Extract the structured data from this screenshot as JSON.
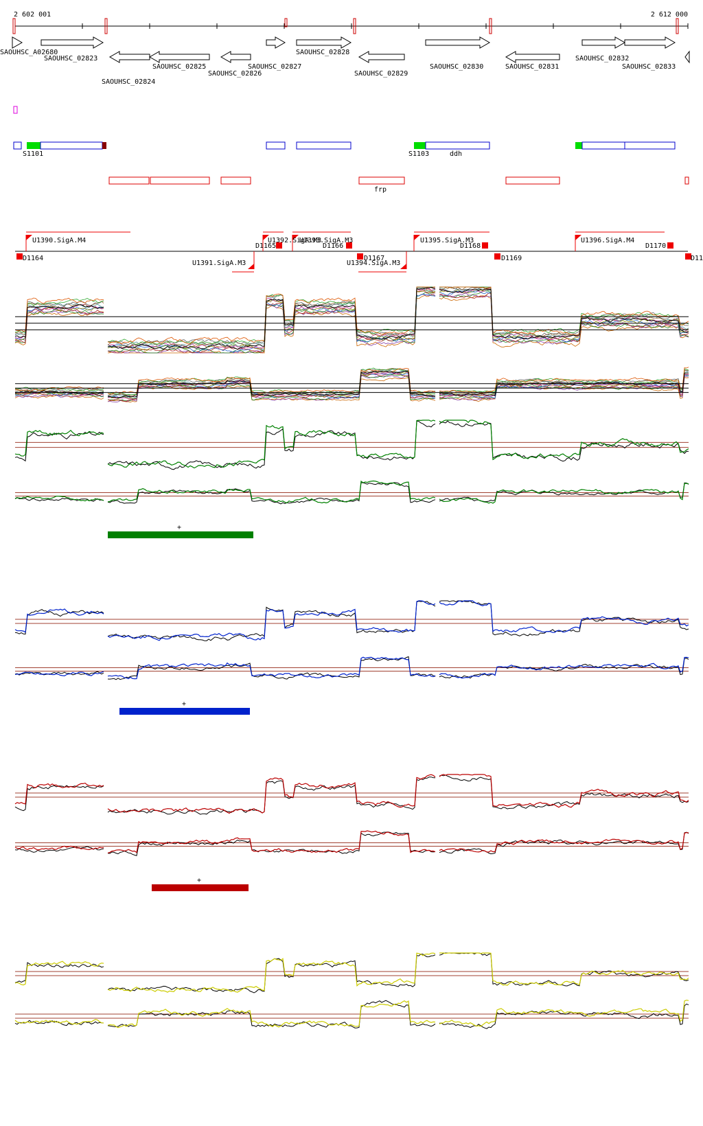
{
  "coordinates": {
    "start": "2 602 001",
    "end": "2 612 000"
  },
  "genes": [
    {
      "label": "SAOUHSC_A02680",
      "strand": "+"
    },
    {
      "label": "SAOUHSC_02823",
      "strand": "+"
    },
    {
      "label": "SAOUHSC_02824",
      "strand": "-"
    },
    {
      "label": "SAOUHSC_02825",
      "strand": "-"
    },
    {
      "label": "SAOUHSC_02826",
      "strand": "-"
    },
    {
      "label": "SAOUHSC_02827",
      "strand": "+"
    },
    {
      "label": "SAOUHSC_02828",
      "strand": "+"
    },
    {
      "label": "SAOUHSC_02829",
      "strand": "-"
    },
    {
      "label": "SAOUHSC_02830",
      "strand": "+"
    },
    {
      "label": "SAOUHSC_02831",
      "strand": "-"
    },
    {
      "label": "SAOUHSC_02832",
      "strand": "+"
    },
    {
      "label": "SAOUHSC_02833",
      "strand": "+"
    }
  ],
  "feature_labels_plus": [
    "S1101",
    "S1103",
    "ddh"
  ],
  "feature_labels_minus": [
    "frp"
  ],
  "promoters_upper": [
    "U1390.SigA.M4",
    "U1392.SigA.M3",
    "U1393.SigA.M3",
    "U1395.SigA.M3",
    "U1396.SigA.M4"
  ],
  "promoters_lower": [
    "U1391.SigA.M3",
    "U1394.SigA.M3"
  ],
  "terminators": [
    "D1164",
    "D1165",
    "D1166",
    "D1167",
    "D1168",
    "D1169",
    "D1170",
    "D11"
  ],
  "condition_marker": "+",
  "colors": {
    "gene_outline": "#000000",
    "feature_plus": "#0000cc",
    "feature_highlight": "#00dd00",
    "feature_minus": "#dd0000",
    "promoter": "#ee0000",
    "group_green": "#008000",
    "group_blue": "#0022cc",
    "group_red": "#bb0000",
    "group_yellow": "#cccc00",
    "threshold": "#a04030"
  }
}
